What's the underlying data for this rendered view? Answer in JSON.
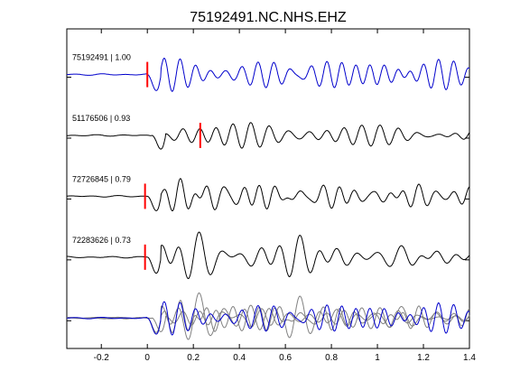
{
  "chart_data": {
    "type": "line",
    "title": "75192491.NC.NHS.EHZ",
    "xlabel": "",
    "ylabel": "",
    "xlim": [
      -0.35,
      1.4
    ],
    "x_ticks": [
      -0.2,
      0,
      0.2,
      0.4,
      0.6,
      0.8,
      1,
      1.2,
      1.4
    ],
    "x_tick_labels": [
      "-0.2",
      "0",
      "0.2",
      "0.4",
      "0.6",
      "0.8",
      "1",
      "1.2",
      "1.4"
    ],
    "grid": false,
    "legend": "none",
    "colors": {
      "reference": "#0000cc",
      "trace": "#000000",
      "overlay": "#808080",
      "pick": "#ff0000"
    },
    "traces": [
      {
        "label": "75192491 | 1.00",
        "event_id": "75192491",
        "correlation": 1.0,
        "color": "reference",
        "pick_time": 0.0,
        "onset": 0.0,
        "freq": 13.0,
        "amp": 1.0,
        "seed": 1
      },
      {
        "label": "51176506 | 0.93",
        "event_id": "51176506",
        "correlation": 0.93,
        "color": "trace",
        "pick_time": 0.23,
        "onset": 0.02,
        "freq": 11.5,
        "amp": 0.85,
        "seed": 2
      },
      {
        "label": "72726845 | 0.79",
        "event_id": "72726845",
        "correlation": 0.79,
        "color": "trace",
        "pick_time": -0.01,
        "onset": 0.0,
        "freq": 12.0,
        "amp": 0.9,
        "seed": 3
      },
      {
        "label": "72283626 | 0.73",
        "event_id": "72283626",
        "correlation": 0.73,
        "color": "trace",
        "pick_time": -0.01,
        "onset": 0.0,
        "freq": 10.5,
        "amp": 1.0,
        "seed": 4
      }
    ],
    "overlay": {
      "description": "stacked overlay of all traces",
      "members": [
        "51176506",
        "72726845",
        "72283626",
        "75192491"
      ]
    }
  }
}
